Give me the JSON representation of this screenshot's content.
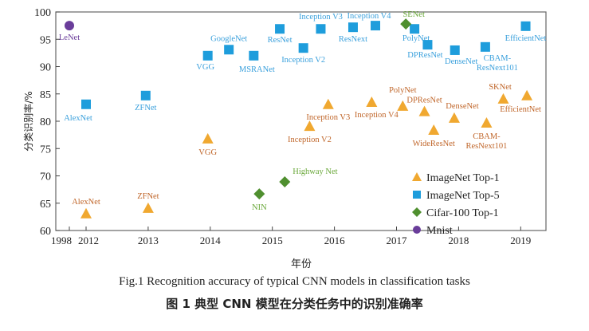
{
  "chart_data": {
    "type": "scatter",
    "xlabel": "年份",
    "ylabel": "分类识别率/%",
    "ylim": [
      60,
      100
    ],
    "yticks": [
      60,
      65,
      70,
      75,
      80,
      85,
      90,
      95,
      100
    ],
    "xticks": [
      "1998",
      "2012",
      "2013",
      "2014",
      "2015",
      "2016",
      "2017",
      "2018",
      "2019"
    ],
    "x_axis_note": "broken axis between 1998 and 2012",
    "legend_position": "bottom-right",
    "grid": false,
    "series": [
      {
        "name": "ImageNet Top-1",
        "marker": "triangle",
        "color": "#f0a830",
        "label_color": "#c0662a",
        "points": [
          {
            "label": "AlexNet",
            "x": 2012.0,
            "y": 63.1
          },
          {
            "label": "ZFNet",
            "x": 2013.0,
            "y": 64.1
          },
          {
            "label": "VGG",
            "x": 2013.96,
            "y": 76.8
          },
          {
            "label": "Inception V2",
            "x": 2015.6,
            "y": 79.1
          },
          {
            "label": "Inception V3",
            "x": 2015.9,
            "y": 83.1
          },
          {
            "label": "Inception V4",
            "x": 2016.6,
            "y": 83.5
          },
          {
            "label": "PolyNet",
            "x": 2017.1,
            "y": 82.8
          },
          {
            "label": "DPResNet",
            "x": 2017.45,
            "y": 81.8
          },
          {
            "label": "WideResNet",
            "x": 2017.6,
            "y": 78.4
          },
          {
            "label": "DenseNet",
            "x": 2017.93,
            "y": 80.6
          },
          {
            "label": "CBAM-ResNext101",
            "x": 2018.45,
            "y": 79.7
          },
          {
            "label": "SKNet",
            "x": 2018.72,
            "y": 84.1
          },
          {
            "label": "EfficientNet",
            "x": 2019.1,
            "y": 84.7
          }
        ]
      },
      {
        "name": "ImageNet Top-5",
        "marker": "square",
        "color": "#1e9ddc",
        "label_color": "#3aa0dc",
        "points": [
          {
            "label": "AlexNet",
            "x": 2012.0,
            "y": 83.1
          },
          {
            "label": "ZFNet",
            "x": 2012.96,
            "y": 84.7
          },
          {
            "label": "VGG",
            "x": 2013.96,
            "y": 92.0
          },
          {
            "label": "GoogleNet",
            "x": 2014.3,
            "y": 93.1
          },
          {
            "label": "MSRANet",
            "x": 2014.7,
            "y": 92.0
          },
          {
            "label": "ResNet",
            "x": 2015.12,
            "y": 96.9
          },
          {
            "label": "Inception V2",
            "x": 2015.5,
            "y": 93.4
          },
          {
            "label": "Inception V3",
            "x": 2015.78,
            "y": 96.9
          },
          {
            "label": "ResNext",
            "x": 2016.3,
            "y": 97.2
          },
          {
            "label": "Inception V4",
            "x": 2016.66,
            "y": 97.5
          },
          {
            "label": "PolyNet",
            "x": 2017.29,
            "y": 96.9
          },
          {
            "label": "DPResNet",
            "x": 2017.5,
            "y": 94.0
          },
          {
            "label": "DenseNet",
            "x": 2017.94,
            "y": 93.0
          },
          {
            "label": "CBAM-ResNext101",
            "x": 2018.43,
            "y": 93.6
          },
          {
            "label": "EfficientNet",
            "x": 2019.08,
            "y": 97.4
          }
        ]
      },
      {
        "name": "Cifar-100 Top-1",
        "marker": "diamond",
        "color": "#4f8f2f",
        "label_color": "#6aa83a",
        "points": [
          {
            "label": "NIN",
            "x": 2014.79,
            "y": 66.7
          },
          {
            "label": "Highway Net",
            "x": 2015.2,
            "y": 68.9
          },
          {
            "label": "SENet",
            "x": 2017.15,
            "y": 97.8
          }
        ]
      },
      {
        "name": "Mnist",
        "marker": "circle",
        "color": "#6a3d9a",
        "label_color": "#6a3d9a",
        "points": [
          {
            "label": "LeNet",
            "x": 1998,
            "y": 97.5
          }
        ]
      }
    ]
  },
  "caption_en": "Fig.1    Recognition accuracy of typical CNN models in classification tasks",
  "caption_zh": "图 1    典型 CNN 模型在分类任务中的识别准确率"
}
